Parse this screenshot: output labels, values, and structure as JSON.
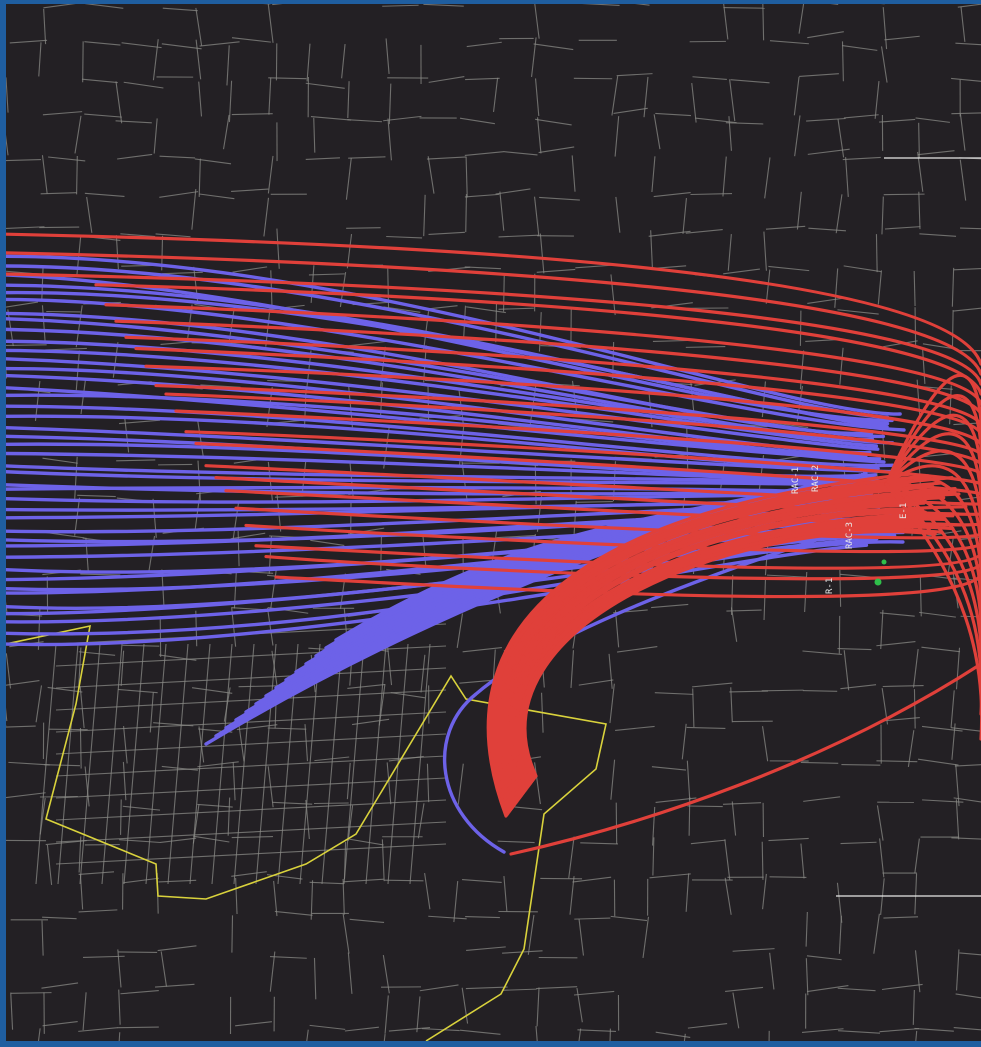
{
  "colors": {
    "frame": "#1f5ea0",
    "background": "#232024",
    "streets": "#8a8a86",
    "boundary": "#d9d23c",
    "trajectory_red": "#e0403a",
    "trajectory_blue": "#6d62e8",
    "source_marker": "#2fbf4a",
    "labels": "#e8e8e8"
  },
  "icons": {
    "source_marker": "green-dot-icon"
  },
  "labels": {
    "station_a": "RAC-1",
    "station_b": "RAC-2",
    "station_c": "RAC-3",
    "station_d": "R-1",
    "station_e": "E-1"
  },
  "legend_items": []
}
